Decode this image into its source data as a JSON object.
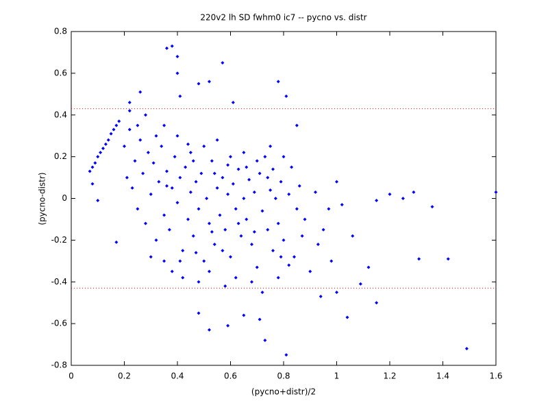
{
  "chart_data": {
    "type": "scatter",
    "title": "220v2 lh SD fwhm0 ic7 -- pycno vs. distr",
    "xlabel": "(pycno+distr)/2",
    "ylabel": "(pycno-distr)",
    "xlim": [
      0,
      1.6
    ],
    "ylim": [
      -0.8,
      0.8
    ],
    "xticks": [
      0,
      0.2,
      0.4,
      0.6,
      0.8,
      1,
      1.2,
      1.4,
      1.6
    ],
    "yticks": [
      -0.8,
      -0.6,
      -0.4,
      -0.2,
      0,
      0.2,
      0.4,
      0.6,
      0.8
    ],
    "grid": false,
    "hlines": {
      "values": [
        0.43,
        -0.43
      ],
      "color": "#ff0000"
    },
    "series": [
      {
        "color": "#0000ff",
        "x": [
          0.36,
          0.38,
          0.4,
          0.4,
          0.57,
          0.41,
          0.48,
          0.52,
          0.78,
          0.81,
          0.61,
          1.6,
          1.49,
          0.81,
          0.73,
          1.0,
          1.15,
          1.2,
          1.29,
          1.25,
          1.36,
          1.31,
          1.42,
          1.15,
          1.04,
          1.0,
          0.94,
          1.09,
          1.12,
          1.06,
          1.02,
          0.1,
          0.08,
          0.17,
          0.22,
          0.26,
          0.52,
          0.59,
          0.48,
          0.65,
          0.71,
          0.07,
          0.08,
          0.09,
          0.1,
          0.11,
          0.12,
          0.13,
          0.14,
          0.15,
          0.16,
          0.17,
          0.18,
          0.2,
          0.21,
          0.22,
          0.23,
          0.24,
          0.25,
          0.26,
          0.27,
          0.28,
          0.29,
          0.3,
          0.31,
          0.32,
          0.33,
          0.34,
          0.35,
          0.36,
          0.37,
          0.38,
          0.39,
          0.4,
          0.41,
          0.42,
          0.43,
          0.44,
          0.45,
          0.46,
          0.47,
          0.48,
          0.49,
          0.5,
          0.51,
          0.52,
          0.53,
          0.54,
          0.55,
          0.56,
          0.57,
          0.58,
          0.59,
          0.6,
          0.61,
          0.62,
          0.63,
          0.64,
          0.65,
          0.66,
          0.67,
          0.68,
          0.69,
          0.7,
          0.71,
          0.72,
          0.73,
          0.74,
          0.75,
          0.76,
          0.77,
          0.78,
          0.79,
          0.8,
          0.82,
          0.84,
          0.86,
          0.88,
          0.9,
          0.92,
          0.95,
          0.97,
          0.35,
          0.4,
          0.45,
          0.5,
          0.55,
          0.6,
          0.65,
          0.7,
          0.75,
          0.8,
          0.85,
          0.38,
          0.42,
          0.48,
          0.52,
          0.58,
          0.62,
          0.68,
          0.72,
          0.78,
          0.82,
          0.28,
          0.32,
          0.25,
          0.22,
          0.3,
          0.35,
          0.44,
          0.46,
          0.54,
          0.57,
          0.63,
          0.66,
          0.74,
          0.79,
          0.83,
          0.87,
          0.41,
          0.36,
          0.47,
          0.53,
          0.59,
          0.69,
          0.76,
          0.85,
          0.93,
          0.98
        ],
        "values": [
          0.72,
          0.73,
          0.68,
          0.6,
          0.65,
          0.49,
          0.55,
          0.56,
          0.56,
          0.49,
          0.46,
          0.03,
          -0.72,
          -0.75,
          -0.68,
          0.08,
          -0.01,
          0.02,
          0.03,
          0.0,
          -0.04,
          -0.29,
          -0.29,
          -0.5,
          -0.57,
          -0.45,
          -0.47,
          -0.41,
          -0.33,
          -0.18,
          -0.03,
          -0.01,
          0.07,
          -0.21,
          0.46,
          0.51,
          -0.63,
          -0.61,
          -0.55,
          -0.56,
          -0.58,
          0.13,
          0.15,
          0.17,
          0.2,
          0.22,
          0.24,
          0.26,
          0.28,
          0.31,
          0.33,
          0.35,
          0.37,
          0.25,
          0.1,
          0.33,
          0.05,
          0.18,
          -0.05,
          0.28,
          0.12,
          -0.12,
          0.22,
          0.02,
          0.17,
          -0.2,
          0.08,
          0.25,
          -0.08,
          0.13,
          -0.15,
          0.05,
          0.2,
          -0.02,
          0.1,
          -0.25,
          0.15,
          -0.1,
          0.03,
          -0.18,
          0.08,
          -0.05,
          0.12,
          -0.3,
          0.0,
          -0.12,
          0.18,
          -0.22,
          0.05,
          -0.08,
          0.1,
          -0.15,
          0.02,
          -0.28,
          0.07,
          -0.05,
          0.14,
          -0.18,
          0.0,
          -0.1,
          0.09,
          -0.22,
          0.03,
          -0.33,
          0.12,
          -0.06,
          0.2,
          -0.15,
          0.04,
          -0.25,
          0.0,
          -0.12,
          0.08,
          -0.2,
          0.02,
          -0.28,
          0.06,
          -0.1,
          -0.35,
          0.03,
          -0.15,
          -0.05,
          0.35,
          0.3,
          0.22,
          0.25,
          0.28,
          0.2,
          0.22,
          0.18,
          0.25,
          0.2,
          0.35,
          -0.35,
          -0.38,
          -0.4,
          -0.35,
          -0.42,
          -0.38,
          -0.4,
          -0.45,
          -0.38,
          -0.32,
          0.4,
          0.3,
          0.35,
          0.42,
          -0.28,
          -0.3,
          0.26,
          0.18,
          0.12,
          -0.25,
          -0.12,
          0.15,
          0.1,
          -0.28,
          0.15,
          -0.18,
          -0.3,
          0.06,
          -0.26,
          -0.16,
          0.16,
          -0.16,
          0.14,
          -0.05,
          -0.22,
          -0.3
        ]
      }
    ]
  }
}
